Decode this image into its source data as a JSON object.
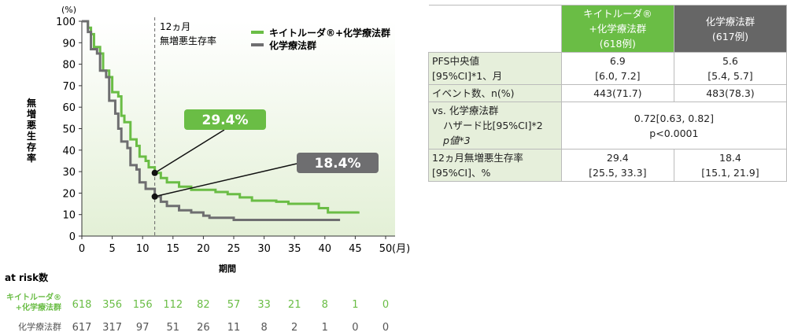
{
  "chart_data": {
    "type": "line",
    "title": "",
    "ylabel": "無増悪生存率",
    "yunit": "(%)",
    "xlabel": "期間",
    "xunit": "(月)",
    "xlim": [
      0,
      50
    ],
    "ylim": [
      0,
      100
    ],
    "xticks": [
      0,
      5,
      10,
      15,
      20,
      25,
      30,
      35,
      40,
      45,
      50
    ],
    "yticks": [
      0,
      10,
      20,
      30,
      40,
      50,
      60,
      70,
      80,
      90,
      100
    ],
    "annotation": {
      "line_x": 12,
      "text1": "12ヵ月",
      "text2": "無増悪生存率"
    },
    "legend_position": "top-right",
    "series": [
      {
        "name": "キイトルーダ®+化学療法群",
        "color": "#6abd45",
        "label": "29.4%",
        "point": [
          12,
          29.4
        ],
        "x": [
          0,
          1,
          1.5,
          2,
          3,
          3.5,
          4.5,
          5,
          6,
          6.5,
          7,
          8,
          9,
          9.5,
          10.5,
          11,
          12,
          13,
          14,
          16,
          18,
          22,
          24,
          26,
          28,
          32,
          34,
          38,
          39,
          40.5,
          45.5
        ],
        "y": [
          100,
          97,
          94,
          88,
          85,
          77,
          74,
          67,
          65,
          56,
          53,
          45,
          42,
          37,
          35,
          32,
          29.4,
          27,
          25,
          23,
          21.5,
          20.5,
          19.5,
          18,
          16.5,
          16,
          15,
          15,
          13,
          11,
          11.5
        ]
      },
      {
        "name": "化学療法群",
        "color": "#6e6e70",
        "label": "18.4%",
        "point": [
          12,
          18.4
        ],
        "x": [
          0,
          1,
          1.5,
          2.5,
          3,
          4,
          4.5,
          5.5,
          6,
          6.5,
          7.5,
          8,
          9,
          9.5,
          10.5,
          12,
          13,
          14,
          16,
          18,
          20,
          21,
          25,
          42.5
        ],
        "y": [
          100,
          95,
          87,
          85,
          77,
          74,
          63,
          57,
          50,
          44,
          41,
          33,
          31,
          25,
          22,
          18.4,
          16,
          14,
          12,
          11,
          9.5,
          8.5,
          7.5,
          7.5
        ]
      }
    ],
    "at_risk": {
      "title": "at risk数",
      "rows": [
        {
          "label1": "キイトルーダ®",
          "label2": "+化学療法群",
          "color": "#6abd45",
          "values": [
            618,
            356,
            156,
            112,
            82,
            57,
            33,
            21,
            8,
            1,
            0
          ]
        },
        {
          "label1": "化学療法群",
          "label2": "",
          "color": "#555",
          "values": [
            617,
            317,
            97,
            51,
            26,
            11,
            8,
            2,
            1,
            0,
            0
          ]
        }
      ]
    }
  },
  "table": {
    "headers": [
      {
        "l1": "キイトルーダ®",
        "l2": "+化学療法群",
        "l3": "(618例)"
      },
      {
        "l1": "化学療法群",
        "l2": "(617例)"
      }
    ],
    "rows": [
      {
        "label1": "PFS中央値",
        "label2": "[95%CI]*1、月",
        "a1": "6.9",
        "a2": "[6.0, 7.2]",
        "b1": "5.6",
        "b2": "[5.4, 5.7]"
      },
      {
        "label1": "イベント数、n(%)",
        "a1": "443(71.7)",
        "b1": "483(78.3)"
      },
      {
        "label1": "vs. 化学療法群",
        "label2": "ハザード比[95%CI]*2",
        "label3": "p値*3",
        "m1": "0.72[0.63, 0.82]",
        "m2": "p<0.0001"
      },
      {
        "label1": "12ヵ月無増悪生存率",
        "label2": "[95%CI]、%",
        "a1": "29.4",
        "a2": "[25.5, 33.3]",
        "b1": "18.4",
        "b2": "[15.1, 21.9]"
      }
    ]
  }
}
